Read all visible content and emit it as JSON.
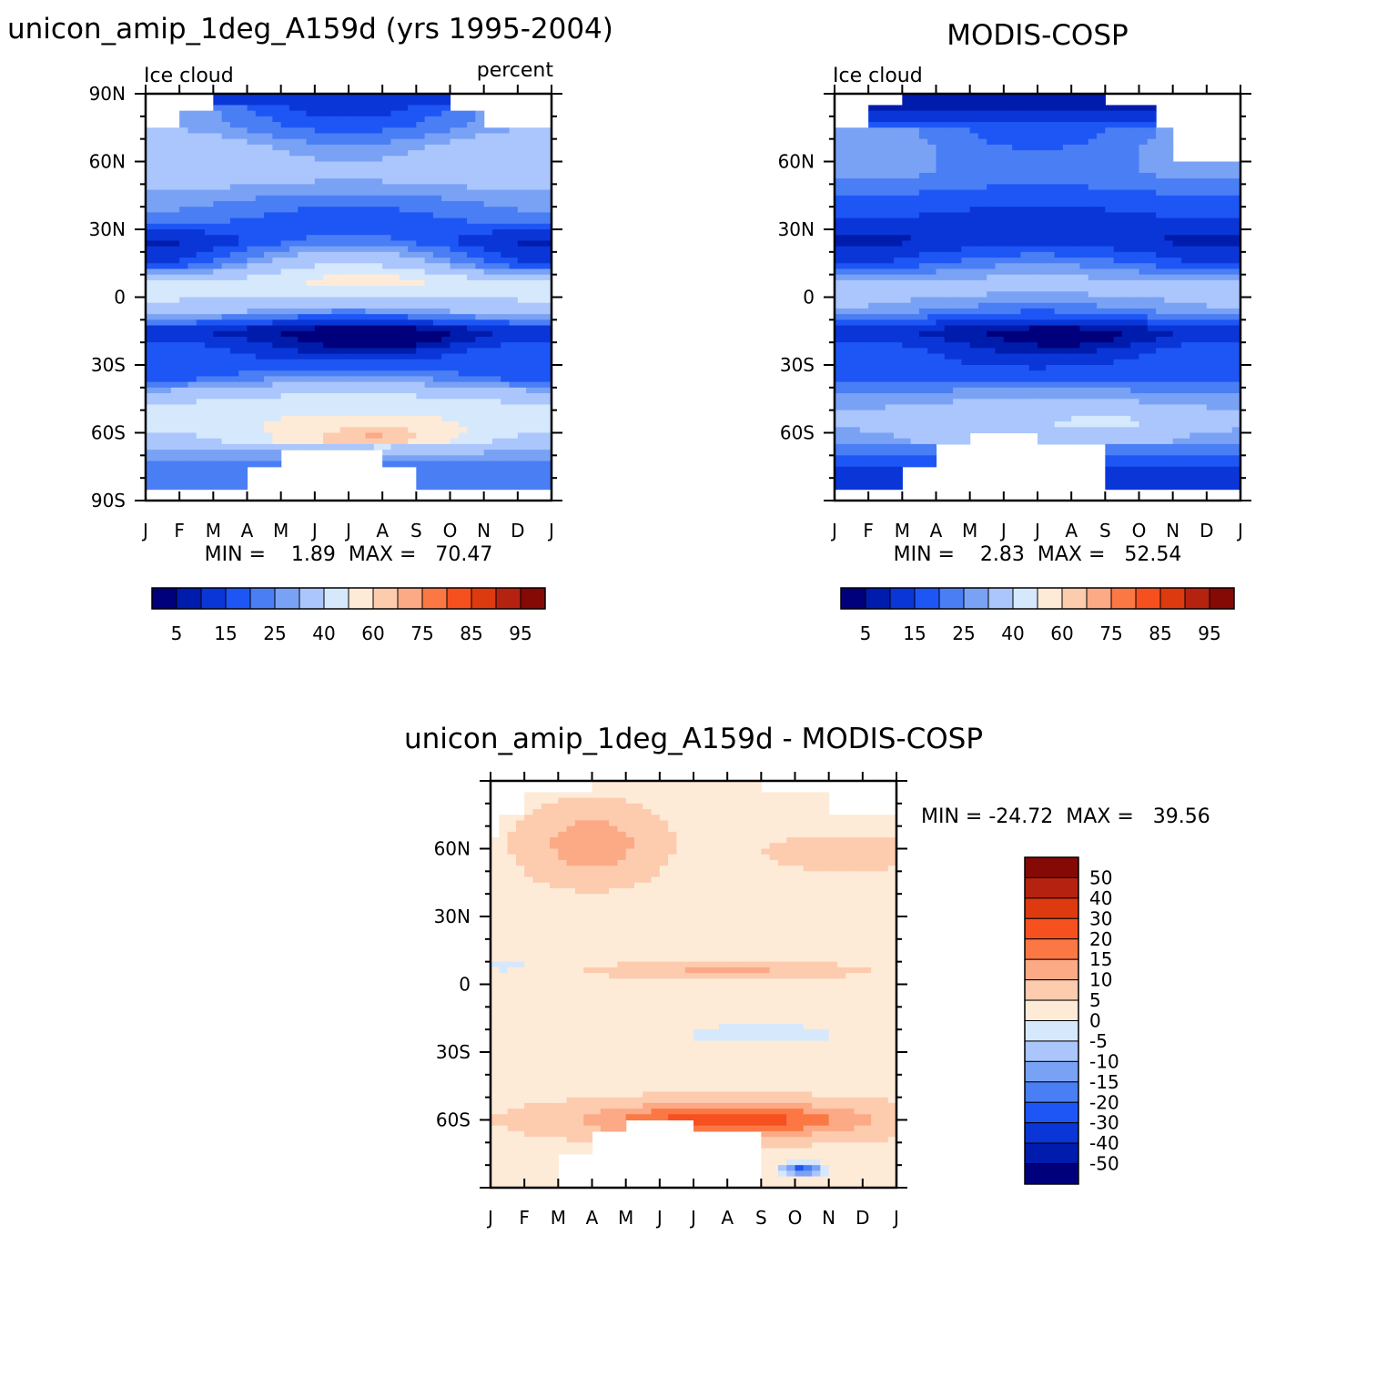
{
  "chart_data": [
    {
      "type": "heatmap",
      "title": "unicon_amip_1deg_A159d (yrs 1995-2004)",
      "left_label": "Ice cloud",
      "right_label": "percent",
      "x_labels": [
        "J",
        "F",
        "M",
        "A",
        "M",
        "J",
        "J",
        "A",
        "S",
        "O",
        "N",
        "D",
        "J"
      ],
      "y_labels": [
        "90N",
        "60N",
        "30N",
        "0",
        "30S",
        "60S",
        "90S"
      ],
      "ylim": [
        -90,
        90
      ],
      "stats_text": "MIN =    1.89  MAX =   70.47",
      "min": 1.89,
      "max": 70.47,
      "levels": [
        5,
        10,
        15,
        20,
        25,
        30,
        40,
        50,
        60,
        65,
        75,
        80,
        85,
        90,
        95
      ],
      "colorbar_labels": [
        "5",
        "15",
        "25",
        "40",
        "60",
        "75",
        "85",
        "95"
      ],
      "zonal_profile": {
        "lat": [
          -85,
          -75,
          -65,
          -55,
          -45,
          -35,
          -25,
          -15,
          -5,
          5,
          15,
          25,
          35,
          45,
          55,
          65,
          75,
          85
        ],
        "jan": [
          null,
          22,
          33,
          46,
          38,
          16,
          20,
          11,
          38,
          44,
          14,
          8,
          24,
          28,
          38,
          40,
          30,
          null
        ],
        "jul": [
          null,
          null,
          null,
          52,
          44,
          26,
          10,
          3,
          28,
          50,
          40,
          22,
          16,
          24,
          33,
          27,
          18,
          10
        ]
      }
    },
    {
      "type": "heatmap",
      "title": "MODIS-COSP",
      "left_label": "Ice cloud",
      "x_labels": [
        "J",
        "F",
        "M",
        "A",
        "M",
        "J",
        "J",
        "A",
        "S",
        "O",
        "N",
        "D",
        "J"
      ],
      "y_labels": [
        "60N",
        "30N",
        "0",
        "30S",
        "60S"
      ],
      "ylim": [
        -90,
        90
      ],
      "stats_text": "MIN =    2.83  MAX =   52.54",
      "min": 2.83,
      "max": 52.54,
      "levels": [
        5,
        10,
        15,
        20,
        25,
        30,
        40,
        50,
        60,
        65,
        75,
        80,
        85,
        90,
        95
      ],
      "colorbar_labels": [
        "5",
        "15",
        "25",
        "40",
        "60",
        "75",
        "85",
        "95"
      ],
      "zonal_profile": {
        "lat": [
          -85,
          -75,
          -65,
          -55,
          -45,
          -35,
          -25,
          -15,
          -5,
          5,
          15,
          25,
          35,
          45,
          55,
          65,
          75,
          85
        ],
        "jan": [
          null,
          14,
          26,
          32,
          28,
          18,
          20,
          12,
          30,
          34,
          14,
          8,
          16,
          20,
          28,
          30,
          null,
          null
        ],
        "jul": [
          null,
          null,
          null,
          38,
          30,
          18,
          10,
          5,
          22,
          34,
          25,
          12,
          12,
          18,
          22,
          20,
          16,
          9
        ]
      }
    },
    {
      "type": "heatmap",
      "title": "unicon_amip_1deg_A159d - MODIS-COSP",
      "x_labels": [
        "J",
        "F",
        "M",
        "A",
        "M",
        "J",
        "J",
        "A",
        "S",
        "O",
        "N",
        "D",
        "J"
      ],
      "y_labels": [
        "60N",
        "30N",
        "0",
        "30S",
        "60S"
      ],
      "ylim": [
        -90,
        90
      ],
      "stats_text": "MIN = -24.72  MAX =   39.56",
      "min": -24.72,
      "max": 39.56,
      "levels": [
        -50,
        -40,
        -30,
        -20,
        -15,
        -10,
        -5,
        0,
        5,
        10,
        15,
        20,
        30,
        40,
        50
      ],
      "colorbar_labels": [
        "50",
        "40",
        "30",
        "20",
        "15",
        "10",
        "5",
        "0",
        "-5",
        "-10",
        "-15",
        "-20",
        "-30",
        "-40",
        "-50"
      ]
    }
  ],
  "colors": {
    "palette": [
      "#00007d",
      "#001cad",
      "#0a36d8",
      "#1e56f5",
      "#4a7ef5",
      "#79a2f5",
      "#aac6fc",
      "#d6e8fc",
      "#fdebd8",
      "#fdcbae",
      "#fca986",
      "#fb7845",
      "#f7501f",
      "#de3a0f",
      "#b52310",
      "#850a06"
    ]
  }
}
